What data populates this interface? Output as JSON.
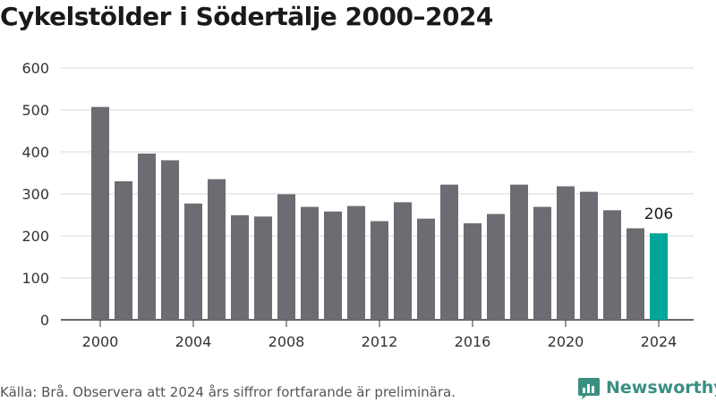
{
  "title": "Cykelstölder i Södertälje 2000–2024",
  "source": "Källa: Brå. Observera att 2024 års siffror fortfarande är preliminära.",
  "brand": {
    "name": "Newsworthy",
    "color": "#3a8f82",
    "icon": "bar-chart-logo-icon"
  },
  "colors": {
    "bar": "#6d6c72",
    "highlight": "#00a69a",
    "grid": "#d9d9d9",
    "axis": "#333333",
    "tick_text": "#333333"
  },
  "chart_data": {
    "type": "bar",
    "title": "Cykelstölder i Södertälje 2000–2024",
    "xlabel": "",
    "ylabel": "",
    "ylim": [
      0,
      600
    ],
    "yticks": [
      0,
      100,
      200,
      300,
      400,
      500,
      600
    ],
    "xticks": [
      2000,
      2004,
      2008,
      2012,
      2016,
      2020,
      2024
    ],
    "grid": true,
    "categories": [
      2000,
      2001,
      2002,
      2003,
      2004,
      2005,
      2006,
      2007,
      2008,
      2009,
      2010,
      2011,
      2012,
      2013,
      2014,
      2015,
      2016,
      2017,
      2018,
      2019,
      2020,
      2021,
      2022,
      2023,
      2024
    ],
    "values": [
      507,
      330,
      396,
      380,
      277,
      335,
      249,
      246,
      299,
      269,
      258,
      271,
      235,
      280,
      241,
      322,
      230,
      252,
      322,
      269,
      318,
      305,
      261,
      218,
      206
    ],
    "highlight": {
      "category": 2024,
      "label": "206"
    }
  }
}
